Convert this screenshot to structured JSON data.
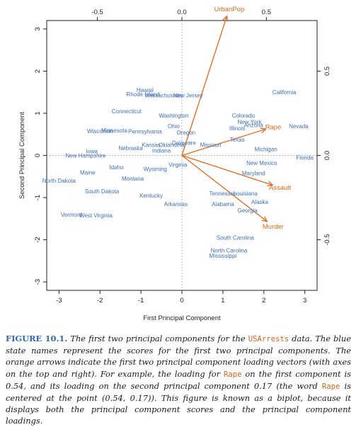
{
  "chart_data": {
    "type": "scatter",
    "subtype": "biplot",
    "xlabel": "First Principal Component",
    "ylabel": "Second Principal Component",
    "xlim": [
      -3.3,
      3.3
    ],
    "ylim": [
      -3.2,
      3.2
    ],
    "x_ticks": [
      "-3",
      "-2",
      "-1",
      "0",
      "1",
      "2",
      "3"
    ],
    "y_ticks": [
      "-3",
      "-2",
      "-1",
      "0",
      "1",
      "2",
      "3"
    ],
    "top_axis": {
      "lim": [
        -0.8,
        0.8
      ],
      "ticks": [
        "-0.5",
        "0.0",
        "0.5"
      ]
    },
    "right_axis": {
      "lim": [
        -0.8,
        0.8
      ],
      "ticks": [
        "-0.5",
        "0.0",
        "0.5"
      ]
    },
    "reference_lines": "dotted at x=0 and y=0",
    "score_color": "#3f6fb5",
    "loading_color": "#e0681a",
    "scores": [
      {
        "label": "Hawaii",
        "x": -0.9,
        "y": 1.55
      },
      {
        "label": "Rhode Island",
        "x": -0.95,
        "y": 1.45
      },
      {
        "label": "Massachusetts",
        "x": -0.45,
        "y": 1.43
      },
      {
        "label": "New Jersey",
        "x": 0.15,
        "y": 1.43
      },
      {
        "label": "California",
        "x": 2.5,
        "y": 1.5
      },
      {
        "label": "Connecticut",
        "x": -1.35,
        "y": 1.05
      },
      {
        "label": "Washington",
        "x": -0.2,
        "y": 0.95
      },
      {
        "label": "Colorado",
        "x": 1.5,
        "y": 0.95
      },
      {
        "label": "New York",
        "x": 1.65,
        "y": 0.8
      },
      {
        "label": "Arizona",
        "x": 1.75,
        "y": 0.72
      },
      {
        "label": "Illinois",
        "x": 1.35,
        "y": 0.65
      },
      {
        "label": "Nevada",
        "x": 2.85,
        "y": 0.7
      },
      {
        "label": "Ohio",
        "x": -0.2,
        "y": 0.7
      },
      {
        "label": "Wisconsin",
        "x": -2.0,
        "y": 0.58
      },
      {
        "label": "Minnesota",
        "x": -1.65,
        "y": 0.6
      },
      {
        "label": "Pennsylvania",
        "x": -0.9,
        "y": 0.57
      },
      {
        "label": "Oregon",
        "x": 0.1,
        "y": 0.55
      },
      {
        "label": "Texas",
        "x": 1.35,
        "y": 0.38
      },
      {
        "label": "Nebraska",
        "x": -1.25,
        "y": 0.18
      },
      {
        "label": "Kansas",
        "x": -0.75,
        "y": 0.25
      },
      {
        "label": "Oklahoma",
        "x": -0.25,
        "y": 0.25
      },
      {
        "label": "Delaware",
        "x": 0.05,
        "y": 0.3
      },
      {
        "label": "Missouri",
        "x": 0.7,
        "y": 0.25
      },
      {
        "label": "Indiana",
        "x": -0.5,
        "y": 0.12
      },
      {
        "label": "Michigan",
        "x": 2.05,
        "y": 0.15
      },
      {
        "label": "Florida",
        "x": 3.0,
        "y": -0.05
      },
      {
        "label": "Iowa",
        "x": -2.2,
        "y": 0.1
      },
      {
        "label": "New Hampshire",
        "x": -2.35,
        "y": 0.0
      },
      {
        "label": "New Mexico",
        "x": 1.95,
        "y": -0.18
      },
      {
        "label": "Virginia",
        "x": -0.1,
        "y": -0.22
      },
      {
        "label": "Idaho",
        "x": -1.6,
        "y": -0.28
      },
      {
        "label": "Wyoming",
        "x": -0.65,
        "y": -0.32
      },
      {
        "label": "Maryland",
        "x": 1.75,
        "y": -0.42
      },
      {
        "label": "Maine",
        "x": -2.3,
        "y": -0.4
      },
      {
        "label": "Montana",
        "x": -1.2,
        "y": -0.55
      },
      {
        "label": "North Dakota",
        "x": -3.0,
        "y": -0.6
      },
      {
        "label": "South Dakota",
        "x": -1.95,
        "y": -0.85
      },
      {
        "label": "Tennessee",
        "x": 1.0,
        "y": -0.9
      },
      {
        "label": "Louisiana",
        "x": 1.55,
        "y": -0.9
      },
      {
        "label": "Kentucky",
        "x": -0.75,
        "y": -0.95
      },
      {
        "label": "Arkansas",
        "x": -0.15,
        "y": -1.15
      },
      {
        "label": "Alaska",
        "x": 1.9,
        "y": -1.1
      },
      {
        "label": "Alabama",
        "x": 1.0,
        "y": -1.15
      },
      {
        "label": "Georgia",
        "x": 1.6,
        "y": -1.3
      },
      {
        "label": "Vermont",
        "x": -2.7,
        "y": -1.4
      },
      {
        "label": "West Virginia",
        "x": -2.1,
        "y": -1.42
      },
      {
        "label": "South Carolina",
        "x": 1.3,
        "y": -1.95
      },
      {
        "label": "North Carolina",
        "x": 1.15,
        "y": -2.25
      },
      {
        "label": "Mississippi",
        "x": 1.0,
        "y": -2.38
      }
    ],
    "loadings": [
      {
        "label": "UrbanPop",
        "x": 0.28,
        "y": 0.87
      },
      {
        "label": "Rape",
        "x": 0.54,
        "y": 0.17
      },
      {
        "label": "Murder",
        "x": 0.54,
        "y": -0.42
      },
      {
        "label": "Assault",
        "x": 0.58,
        "y": -0.19
      }
    ]
  },
  "caption": {
    "figure_label": "FIGURE 10.1.",
    "part1": " The first two principal components for the ",
    "code1": "USArrests",
    "part2": " data. The blue state names represent the scores for the first two principal components. The orange arrows indicate the first two principal component loading vectors (with axes on the top and right). For example, the loading for ",
    "code2": "Rape",
    "part3": " on the first component is 0.54, and its loading on the second principal component 0.17 (the word ",
    "code3": "Rape",
    "part4": " is centered at the point (0.54, 0.17)). This figure is known as a biplot, because it displays both the principal component scores and the principal component loadings."
  }
}
